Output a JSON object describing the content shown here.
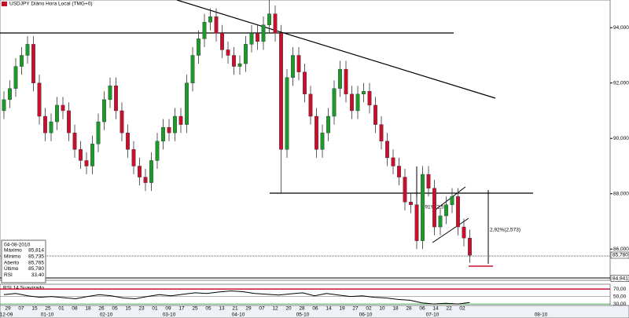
{
  "chart_data": {
    "type": "candlestick",
    "title": "USDJPY Diário Hora Local (TMG+0)",
    "colors": {
      "up": "#1a9a2a",
      "down": "#c8102e"
    },
    "open": [
      91.0,
      91.4,
      91.8,
      92.6,
      93.0,
      93.4,
      92.0,
      90.8,
      90.2,
      90.6,
      91.2,
      91.0,
      90.2,
      89.6,
      89.2,
      89.0,
      89.8,
      90.6,
      91.4,
      91.9,
      91.0,
      90.2,
      89.6,
      89.0,
      88.6,
      88.4,
      89.2,
      89.9,
      90.4,
      90.2,
      90.8,
      90.5,
      92.0,
      93.0,
      93.6,
      94.2,
      94.4,
      93.8,
      93.2,
      93.0,
      92.6,
      92.7,
      93.4,
      93.8,
      93.5,
      94.1,
      94.5,
      93.8,
      89.6,
      92.2,
      93.0,
      92.4,
      91.6,
      90.8,
      89.6,
      90.2,
      90.8,
      91.8,
      92.5,
      91.6,
      91.0,
      91.6,
      91.7,
      91.2,
      90.5,
      89.9,
      89.3,
      89.0,
      88.6,
      87.7,
      87.6,
      86.3,
      88.7,
      88.2,
      86.8,
      87.2,
      87.6,
      87.9,
      86.8,
      86.4
    ],
    "high": [
      91.7,
      92.1,
      92.9,
      93.3,
      93.7,
      93.7,
      92.3,
      91.1,
      90.9,
      91.5,
      91.5,
      91.3,
      90.5,
      89.9,
      89.5,
      90.1,
      90.9,
      91.7,
      92.2,
      92.2,
      91.3,
      90.5,
      89.9,
      89.3,
      88.9,
      89.5,
      90.2,
      90.7,
      90.7,
      91.1,
      91.1,
      92.3,
      93.3,
      93.9,
      94.5,
      94.7,
      94.7,
      94.1,
      93.5,
      93.3,
      93.0,
      93.7,
      94.1,
      94.1,
      94.4,
      95.0,
      94.8,
      94.1,
      92.5,
      93.3,
      93.3,
      92.7,
      91.9,
      91.1,
      90.5,
      91.1,
      92.1,
      92.8,
      92.8,
      91.9,
      91.9,
      92.0,
      92.0,
      91.5,
      90.8,
      90.2,
      89.6,
      89.3,
      88.9,
      88.0,
      87.9,
      89.0,
      89.0,
      88.5,
      87.5,
      87.9,
      88.2,
      88.2,
      87.1,
      86.7
    ],
    "low": [
      90.7,
      91.1,
      91.5,
      92.3,
      92.7,
      91.7,
      90.5,
      89.9,
      89.9,
      90.3,
      90.7,
      89.9,
      89.3,
      88.9,
      88.7,
      88.7,
      89.5,
      90.3,
      91.1,
      90.7,
      89.9,
      89.3,
      88.7,
      88.3,
      88.1,
      88.1,
      88.9,
      89.6,
      89.9,
      89.9,
      90.2,
      90.2,
      91.7,
      92.7,
      93.3,
      93.9,
      93.5,
      92.9,
      92.7,
      92.3,
      92.3,
      92.4,
      93.1,
      93.2,
      93.2,
      93.8,
      93.5,
      88.0,
      89.3,
      91.9,
      92.1,
      91.3,
      90.5,
      89.3,
      89.3,
      89.9,
      90.5,
      91.5,
      91.3,
      90.7,
      90.7,
      91.3,
      90.9,
      90.2,
      89.6,
      89.0,
      88.7,
      88.3,
      87.4,
      87.3,
      86.0,
      86.0,
      87.9,
      86.5,
      86.5,
      86.9,
      87.3,
      86.5,
      86.1,
      85.5
    ],
    "close": [
      91.4,
      91.8,
      92.6,
      93.0,
      93.4,
      92.0,
      90.8,
      90.2,
      90.6,
      91.2,
      91.0,
      90.2,
      89.6,
      89.2,
      89.0,
      89.8,
      90.6,
      91.4,
      91.9,
      91.0,
      90.2,
      89.6,
      89.0,
      88.6,
      88.4,
      89.2,
      89.9,
      90.4,
      90.2,
      90.8,
      90.5,
      92.0,
      93.0,
      93.6,
      94.2,
      94.4,
      93.8,
      93.2,
      93.0,
      92.6,
      92.7,
      93.4,
      93.8,
      93.5,
      94.1,
      94.5,
      93.8,
      89.6,
      92.2,
      93.0,
      92.4,
      91.6,
      90.8,
      89.6,
      90.2,
      90.8,
      91.8,
      92.5,
      91.6,
      91.0,
      91.6,
      91.7,
      91.2,
      90.5,
      89.9,
      89.3,
      89.0,
      88.6,
      87.7,
      87.6,
      86.3,
      88.7,
      88.2,
      86.8,
      87.2,
      87.6,
      87.9,
      86.8,
      86.4,
      85.78
    ],
    "ylim": [
      84.9,
      95.0
    ],
    "yticks": [
      {
        "value": 86,
        "label": "86,000"
      },
      {
        "value": 88,
        "label": "88,000"
      },
      {
        "value": 90,
        "label": "90,000"
      },
      {
        "value": 92,
        "label": "92,000"
      },
      {
        "value": 94,
        "label": "94,000"
      }
    ],
    "last_price": {
      "value": 85.78,
      "label": "85,780"
    },
    "lower_price": {
      "value": 84.941,
      "label": "84,941"
    },
    "annotations": [
      "2,91%(2,5",
      "2,92%(2,573)"
    ],
    "info": {
      "date": "04-08-2010",
      "rows": [
        [
          "Máximo",
          "85,814"
        ],
        [
          "Mínimo",
          "85,735"
        ],
        [
          "Aberto",
          "85,765"
        ],
        [
          "Último",
          "85,780"
        ],
        [
          "RSI",
          "33,40"
        ]
      ]
    },
    "rsi": {
      "name": "RSI 14 Suavizado",
      "color": "#000000",
      "values": [
        55,
        58,
        52,
        48,
        50,
        47,
        44,
        50,
        55,
        52,
        46,
        44,
        50,
        55,
        52,
        56,
        60,
        58,
        62,
        65,
        63,
        58,
        56,
        54,
        57,
        60,
        52,
        58,
        54,
        50,
        52,
        48,
        46,
        42,
        40,
        33,
        30,
        32,
        30,
        34
      ],
      "ylim": [
        26,
        83
      ],
      "yticks": [
        {
          "value": 70,
          "label": "70,00"
        },
        {
          "value": 50,
          "label": "50,00"
        },
        {
          "value": 30,
          "label": "30,00"
        }
      ]
    },
    "days": [
      "29",
      "07",
      "15",
      "25",
      "01",
      "08",
      "18",
      "26",
      "05",
      "15",
      "23",
      "01",
      "09",
      "17",
      "25",
      "05",
      "13",
      "21",
      "29",
      "07",
      "12",
      "20",
      "28",
      "06",
      "14",
      "19",
      "27",
      "02",
      "10",
      "18",
      "28",
      "06",
      "14",
      "22",
      "02"
    ],
    "months": [
      "12-09",
      "01-10",
      "02-10",
      "03-10",
      "04-10",
      "05-10",
      "06-10",
      "07-10",
      "08-10"
    ]
  }
}
